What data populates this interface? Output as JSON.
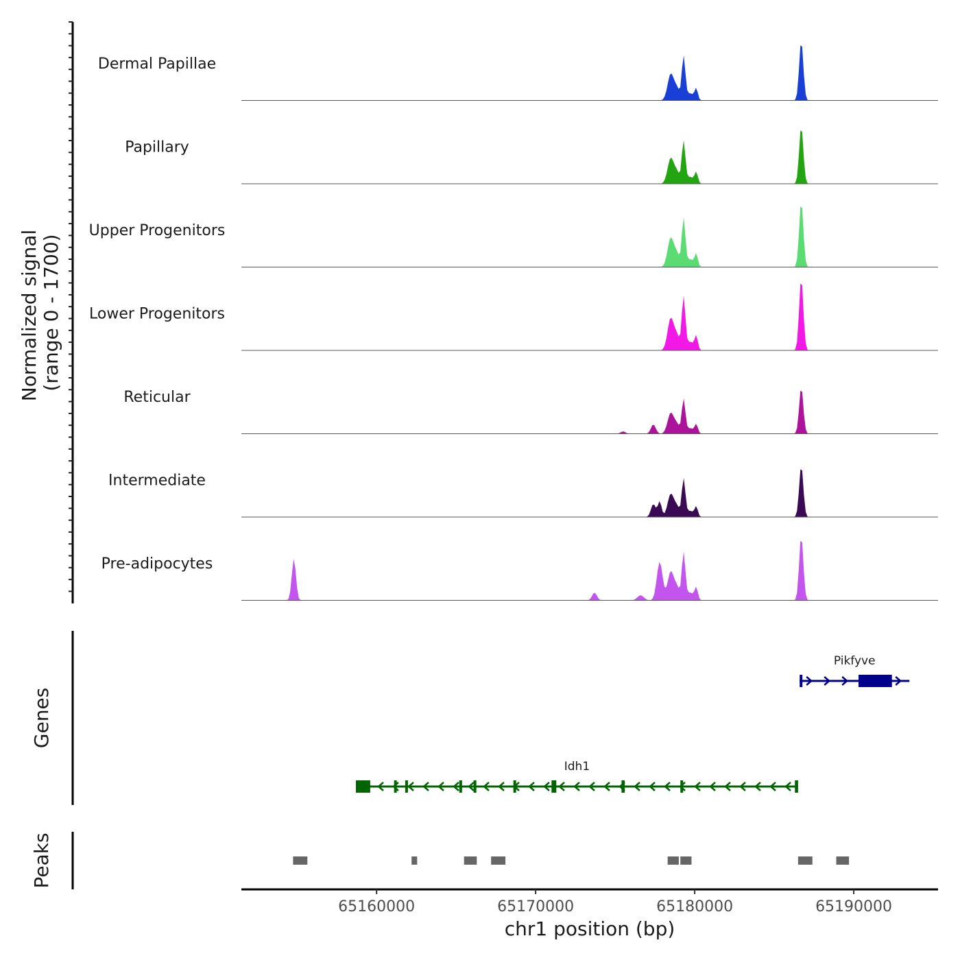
{
  "chart_data": {
    "type": "area",
    "title": "",
    "y_axis_title_line1": "Normalized signal",
    "y_axis_title_line2": "(range 0 - 1700)",
    "ylim": [
      0,
      1700
    ],
    "xlabel": "chr1 position (bp)",
    "xlim": [
      65151500,
      65195300
    ],
    "x_ticks": [
      65160000,
      65170000,
      65180000,
      65190000
    ],
    "x_tick_labels": [
      "65160000",
      "65170000",
      "65180000",
      "65190000"
    ],
    "peak_profile": [
      {
        "x": 65178500,
        "w": 200,
        "rel": 0.45
      },
      {
        "x": 65178900,
        "w": 160,
        "rel": 0.18
      },
      {
        "x": 65179300,
        "w": 110,
        "rel": 0.72
      },
      {
        "x": 65179700,
        "w": 250,
        "rel": 0.12
      },
      {
        "x": 65180100,
        "w": 100,
        "rel": 0.18
      },
      {
        "x": 65186700,
        "w": 130,
        "rel": 1.0
      }
    ],
    "series": [
      {
        "name": "Dermal Papillae",
        "color": "#1a3fd6",
        "max": 1500,
        "extra_peaks": []
      },
      {
        "name": "Papillary",
        "color": "#22a511",
        "max": 1450,
        "extra_peaks": []
      },
      {
        "name": "Upper Progenitors",
        "color": "#5adc73",
        "max": 1650,
        "extra_peaks": []
      },
      {
        "name": "Lower Progenitors",
        "color": "#f219e6",
        "max": 1820,
        "extra_peaks": []
      },
      {
        "name": "Reticular",
        "color": "#aa139a",
        "max": 1170,
        "extra_peaks": [
          {
            "x": 65177400,
            "w": 150,
            "rel": 0.2
          },
          {
            "x": 65175500,
            "w": 150,
            "rel": 0.05
          }
        ]
      },
      {
        "name": "Intermediate",
        "color": "#3b0a54",
        "max": 1300,
        "extra_peaks": [
          {
            "x": 65177400,
            "w": 150,
            "rel": 0.25
          },
          {
            "x": 65177800,
            "w": 120,
            "rel": 0.3
          }
        ]
      },
      {
        "name": "Pre-adipocytes",
        "color": "#c354ee",
        "max": 1620,
        "extra_peaks": [
          {
            "x": 65154800,
            "w": 130,
            "rel": 0.65
          },
          {
            "x": 65177800,
            "w": 180,
            "rel": 0.6
          },
          {
            "x": 65173700,
            "w": 150,
            "rel": 0.12
          },
          {
            "x": 65176600,
            "w": 200,
            "rel": 0.08
          }
        ]
      }
    ],
    "genes_track_label": "Genes",
    "genes": [
      {
        "name": "Pikfyve",
        "start": 65186600,
        "end": 65193500,
        "strand": "+",
        "color": "#00008b",
        "exons": [
          [
            65186600,
            65186750
          ],
          [
            65190300,
            65192400
          ]
        ]
      },
      {
        "name": "Idh1",
        "start": 65158700,
        "end": 65186500,
        "strand": "-",
        "color": "#006400",
        "exons": [
          [
            65158700,
            65159600
          ],
          [
            65161100,
            65161200
          ],
          [
            65161800,
            65161900
          ],
          [
            65165200,
            65165300
          ],
          [
            65166100,
            65166250
          ],
          [
            65168600,
            65168700
          ],
          [
            65171000,
            65171300
          ],
          [
            65175400,
            65175600
          ],
          [
            65179100,
            65179200
          ],
          [
            65186300,
            65186500
          ]
        ]
      }
    ],
    "peaks_track_label": "Peaks",
    "peaks": [
      [
        65154750,
        65155650
      ],
      [
        65162200,
        65162550
      ],
      [
        65165500,
        65166300
      ],
      [
        65167200,
        65168100
      ],
      [
        65178300,
        65179000
      ],
      [
        65179100,
        65179800
      ],
      [
        65186500,
        65187400
      ],
      [
        65188900,
        65189700
      ]
    ]
  }
}
